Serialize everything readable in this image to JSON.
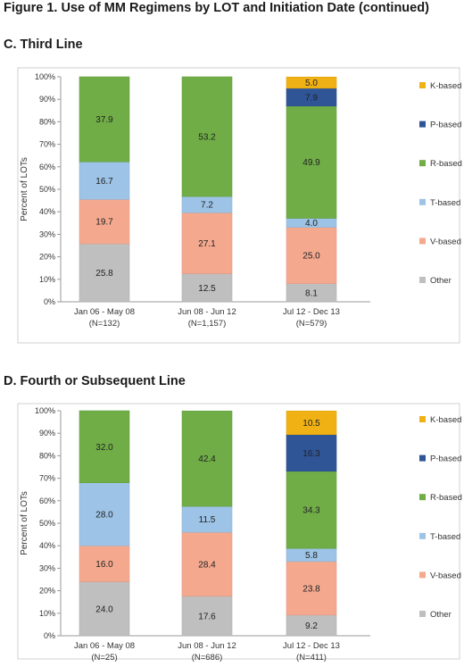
{
  "figure": {
    "title": "Figure 1. Use of MM Regimens by LOT and Initiation Date (continued)"
  },
  "chart_data": [
    {
      "type": "bar",
      "stacked": true,
      "title": "C. Third Line",
      "ylabel": "Percent of LOTs",
      "ylim": [
        0,
        100
      ],
      "yticks": [
        "0%",
        "10%",
        "20%",
        "30%",
        "40%",
        "50%",
        "60%",
        "70%",
        "80%",
        "90%",
        "100%"
      ],
      "categories": [
        [
          "Jan 06 - May 08",
          "(N=132)"
        ],
        [
          "Jun 08 - Jun 12",
          "(N=1,157)"
        ],
        [
          "Jul 12 - Dec 13",
          "(N=579)"
        ]
      ],
      "series": [
        {
          "name": "Other",
          "color": "#bfbfbf",
          "values": [
            25.8,
            12.5,
            8.1
          ]
        },
        {
          "name": "V-based",
          "color": "#f4a98f",
          "values": [
            19.7,
            27.1,
            25.0
          ]
        },
        {
          "name": "T-based",
          "color": "#9dc3e6",
          "values": [
            16.7,
            7.2,
            4.0
          ]
        },
        {
          "name": "R-based",
          "color": "#70ad47",
          "values": [
            37.9,
            53.2,
            49.9
          ]
        },
        {
          "name": "P-based",
          "color": "#2f5597",
          "values": [
            null,
            null,
            7.9
          ]
        },
        {
          "name": "K-based",
          "color": "#f0b114",
          "values": [
            null,
            null,
            5.0
          ]
        }
      ],
      "legend": "right",
      "grid": false
    },
    {
      "type": "bar",
      "stacked": true,
      "title": "D. Fourth or Subsequent Line",
      "ylabel": "Percent of LOTs",
      "ylim": [
        0,
        100
      ],
      "yticks": [
        "0%",
        "10%",
        "20%",
        "30%",
        "40%",
        "50%",
        "60%",
        "70%",
        "80%",
        "90%",
        "100%"
      ],
      "categories": [
        [
          "Jan 06 - May 08",
          "(N=25)"
        ],
        [
          "Jun 08 - Jun 12",
          "(N=686)"
        ],
        [
          "Jul 12 - Dec 13",
          "(N=411)"
        ]
      ],
      "series": [
        {
          "name": "Other",
          "color": "#bfbfbf",
          "values": [
            24.0,
            17.6,
            9.2
          ]
        },
        {
          "name": "V-based",
          "color": "#f4a98f",
          "values": [
            16.0,
            28.4,
            23.8
          ]
        },
        {
          "name": "T-based",
          "color": "#9dc3e6",
          "values": [
            28.0,
            11.5,
            5.8
          ]
        },
        {
          "name": "R-based",
          "color": "#70ad47",
          "values": [
            32.0,
            42.4,
            34.3
          ]
        },
        {
          "name": "P-based",
          "color": "#2f5597",
          "values": [
            null,
            null,
            16.3
          ]
        },
        {
          "name": "K-based",
          "color": "#f0b114",
          "values": [
            null,
            null,
            10.5
          ]
        }
      ],
      "legend": "right",
      "grid": false
    }
  ]
}
